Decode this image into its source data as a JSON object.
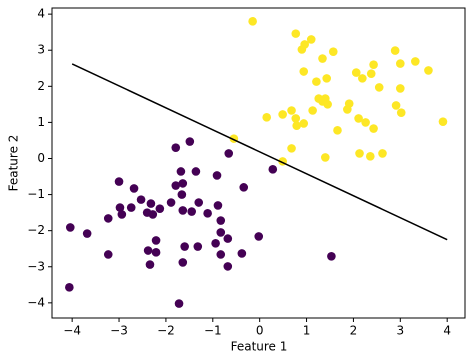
{
  "chart_data": {
    "type": "scatter",
    "x_label": "Feature 1",
    "y_label": "Feature 2",
    "xlim": [
      -4.43,
      4.38
    ],
    "ylim": [
      -4.42,
      4.17
    ],
    "xticks": [
      {
        "value": -4,
        "label": "−4"
      },
      {
        "value": -3,
        "label": "−3"
      },
      {
        "value": -2,
        "label": "−2"
      },
      {
        "value": -1,
        "label": "−1"
      },
      0,
      1,
      2,
      3,
      4
    ],
    "yticks": [
      {
        "value": -4,
        "label": "−4"
      },
      {
        "value": -3,
        "label": "−3"
      },
      {
        "value": -2,
        "label": "−2"
      },
      {
        "value": -1,
        "label": "−1"
      },
      0,
      1,
      2,
      3,
      4
    ],
    "series": [
      {
        "color": "#fde725",
        "x": [
          -0.15,
          0.77,
          1.1,
          0.96,
          0.9,
          1.57,
          1.34,
          2.89,
          3.32,
          3.6,
          3.0,
          2.43,
          0.94,
          2.06,
          2.38,
          2.19,
          1.43,
          1.21,
          3.0,
          2.55,
          1.26,
          1.4,
          1.45,
          1.34,
          1.91,
          2.91,
          3.02,
          1.87,
          1.13,
          0.68,
          0.49,
          0.15,
          2.11,
          2.26,
          0.77,
          0.94,
          0.79,
          1.66,
          2.43,
          3.91,
          0.68,
          2.13,
          2.36,
          2.62,
          1.4,
          -0.55,
          0.49
        ],
        "values": [
          3.8,
          3.46,
          3.3,
          3.16,
          3.02,
          2.96,
          2.77,
          2.99,
          2.69,
          2.44,
          2.63,
          2.6,
          2.41,
          2.38,
          2.35,
          2.22,
          2.22,
          2.13,
          1.94,
          1.97,
          1.66,
          1.66,
          1.5,
          1.58,
          1.52,
          1.47,
          1.27,
          1.36,
          1.33,
          1.33,
          1.22,
          1.14,
          1.11,
          1.0,
          1.11,
          0.97,
          0.91,
          0.78,
          0.83,
          1.02,
          0.28,
          0.14,
          0.06,
          0.14,
          0.03,
          0.55,
          -0.08
        ]
      },
      {
        "color": "#440154",
        "x": [
          -1.79,
          -1.49,
          -0.66,
          -3.0,
          -2.68,
          -1.68,
          -1.36,
          -0.91,
          -1.79,
          -1.64,
          -1.66,
          -0.34,
          0.28,
          -2.53,
          -2.32,
          -1.3,
          -2.13,
          -2.98,
          -2.74,
          -2.4,
          -2.94,
          -2.28,
          -1.89,
          -1.64,
          -1.45,
          -1.11,
          -0.89,
          -3.23,
          -0.83,
          -0.83,
          -4.04,
          -3.68,
          -0.02,
          -0.68,
          -2.21,
          -2.38,
          -2.21,
          -1.6,
          -1.32,
          -0.94,
          -0.83,
          -0.38,
          -3.23,
          -2.34,
          -1.64,
          -0.68,
          1.53,
          -4.06,
          -1.72
        ],
        "values": [
          0.3,
          0.47,
          0.14,
          -0.64,
          -0.83,
          -0.36,
          -0.36,
          -0.47,
          -0.75,
          -0.69,
          -1.0,
          -0.8,
          -0.3,
          -1.14,
          -1.25,
          -1.22,
          -1.39,
          -1.36,
          -1.36,
          -1.5,
          -1.55,
          -1.55,
          -1.22,
          -1.44,
          -1.47,
          -1.52,
          -1.3,
          -1.66,
          -1.72,
          -2.05,
          -1.91,
          -2.08,
          -2.16,
          -2.22,
          -2.27,
          -2.55,
          -2.6,
          -2.44,
          -2.44,
          -2.35,
          -2.66,
          -2.63,
          -2.66,
          -2.94,
          -2.88,
          -2.99,
          -2.71,
          -3.57,
          -4.02
        ]
      }
    ],
    "line": {
      "color": "#000000",
      "x": [
        -4,
        4
      ],
      "values": [
        2.62,
        -2.25
      ]
    }
  }
}
